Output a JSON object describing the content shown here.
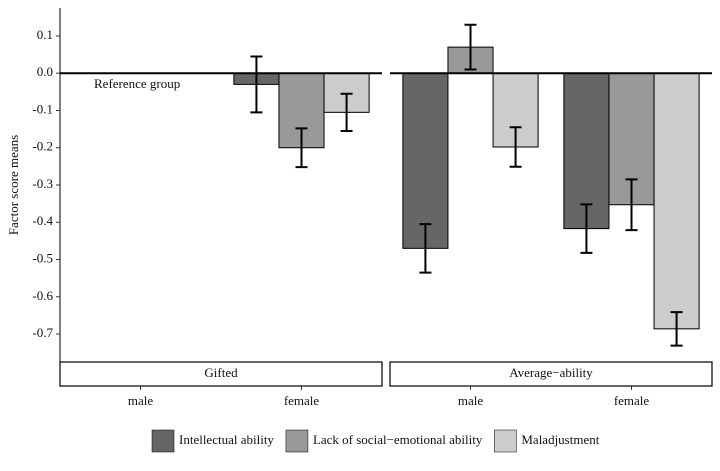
{
  "chart_data": [
    {
      "type": "bar",
      "title": "Gifted",
      "y_label": "Factor score means",
      "annotation": "Reference group",
      "categories": [
        "male",
        "female"
      ],
      "series": [
        {
          "name": "Intellectual ability",
          "color": "#666666",
          "values": [
            null,
            -0.03
          ],
          "errors": [
            null,
            0.075
          ]
        },
        {
          "name": "Lack of social−emotional ability",
          "color": "#999999",
          "values": [
            null,
            -0.2
          ],
          "errors": [
            null,
            0.052
          ]
        },
        {
          "name": "Maladjustment",
          "color": "#cccccc",
          "values": [
            null,
            -0.105
          ],
          "errors": [
            null,
            0.05
          ]
        }
      ],
      "ylim": [
        -0.775,
        0.175
      ],
      "yticks": [
        0.1,
        {
          "value": 0,
          "label": "0.0"
        },
        -0.1,
        -0.2,
        -0.3,
        -0.4,
        -0.5,
        -0.6,
        -0.7
      ]
    },
    {
      "type": "bar",
      "title": "Average−ability",
      "categories": [
        "male",
        "female"
      ],
      "series": [
        {
          "name": "Intellectual ability",
          "color": "#666666",
          "values": [
            -0.47,
            -0.417
          ],
          "errors": [
            0.065,
            0.065
          ]
        },
        {
          "name": "Lack of social−emotional ability",
          "color": "#999999",
          "values": [
            0.07,
            -0.353
          ],
          "errors": [
            0.06,
            0.068
          ]
        },
        {
          "name": "Maladjustment",
          "color": "#cccccc",
          "values": [
            -0.198,
            -0.686
          ],
          "errors": [
            0.053,
            0.045
          ]
        }
      ],
      "ylim": [
        -0.775,
        0.175
      ]
    }
  ]
}
